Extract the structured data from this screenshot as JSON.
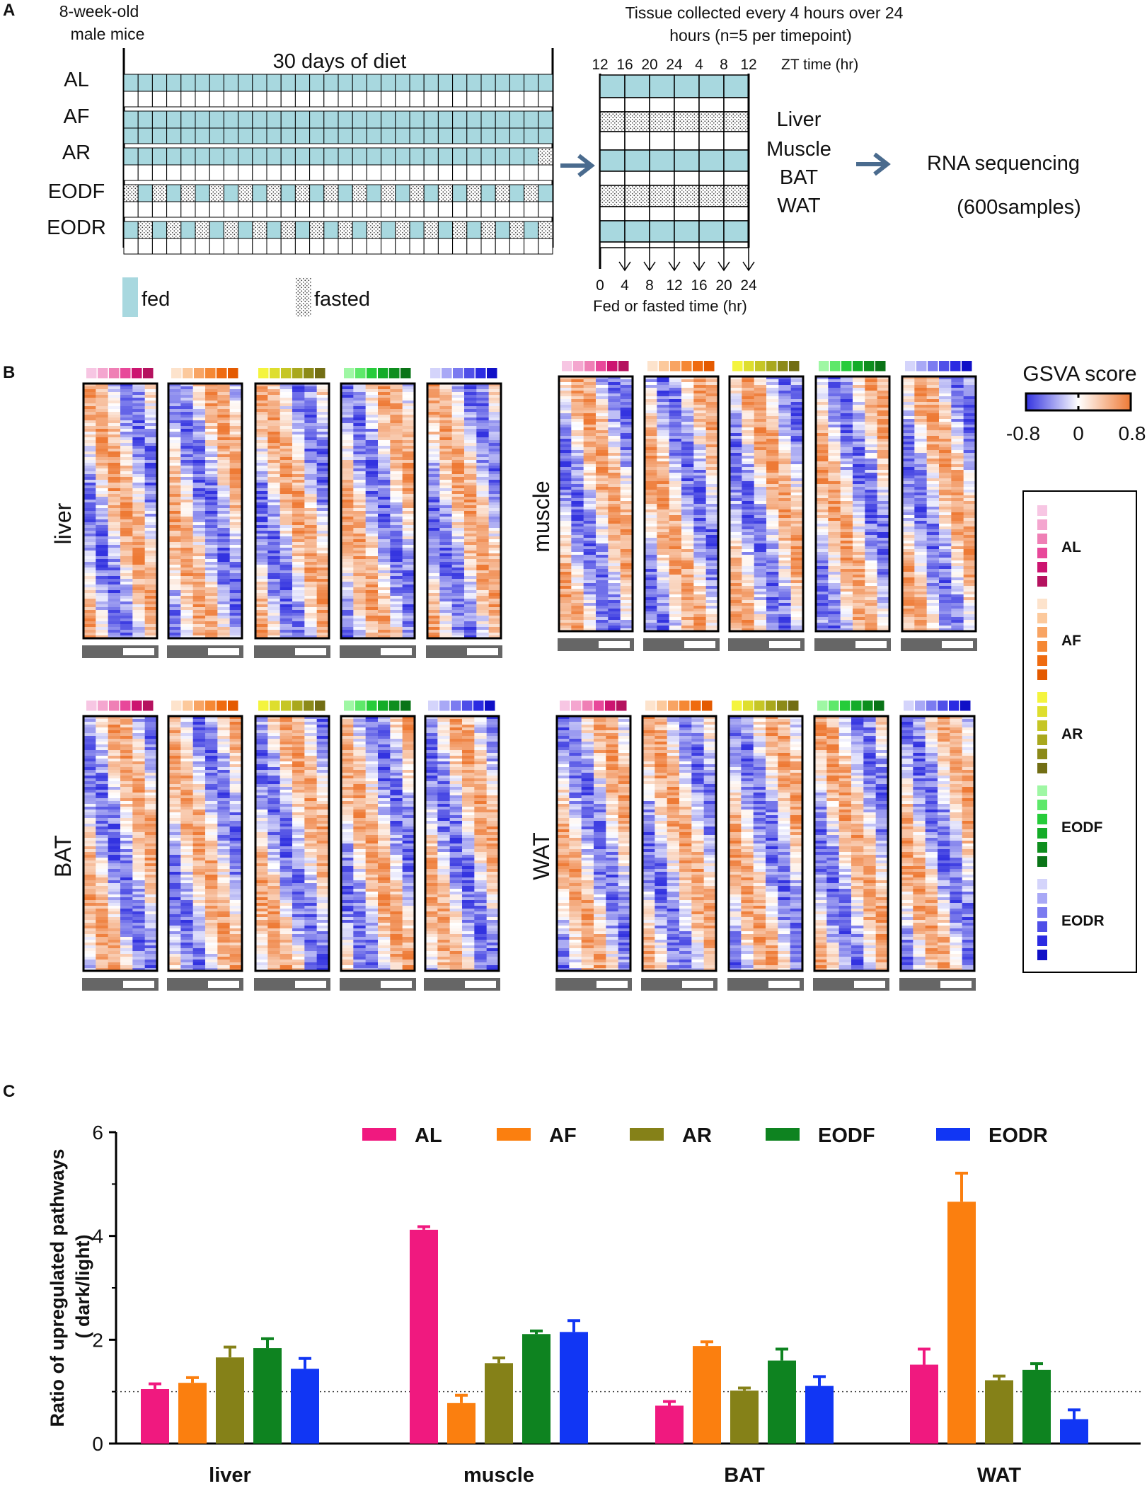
{
  "panels": {
    "a": "A",
    "b": "B",
    "c": "C"
  },
  "colors": {
    "fed": "#a8d8df",
    "fasted_bg": "#ffffff",
    "arrow": "#4a6b8e",
    "heat_low": "#3333e0",
    "heat_mid": "#ffffff",
    "heat_high": "#ee7a35"
  },
  "design": {
    "mice_label": [
      "8-week-old",
      "male mice"
    ],
    "diet_label": "30 days of diet",
    "diets": [
      "AL",
      "AF",
      "AR",
      "EODF",
      "EODR"
    ],
    "legend_fed": "fed",
    "legend_fasted": "fasted",
    "collection_label": [
      "Tissue collected every 4 hours over 24",
      "hours (n=5 per timepoint)"
    ],
    "zt_ticks": [
      "12",
      "16",
      "20",
      "24",
      "4",
      "8",
      "12"
    ],
    "zt_label": "ZT time (hr)",
    "tissues": [
      "Liver",
      "Muscle",
      "BAT",
      "WAT"
    ],
    "rna_label": "RNA sequencing",
    "samples_label": "(600samples)",
    "fed_ticks": [
      "0",
      "4",
      "8",
      "12",
      "16",
      "20",
      "24"
    ],
    "fed_label": "Fed or fasted time (hr)"
  },
  "heatmap": {
    "tissues": [
      "liver",
      "muscle",
      "BAT",
      "WAT"
    ],
    "gsva_title": "GSVA score",
    "gsva_ticks": [
      "-0.8",
      "0",
      "0.8"
    ],
    "groups": [
      {
        "name": "AL",
        "colors": [
          "#f7c6e3",
          "#f4a6cf",
          "#ef7fb5",
          "#e8489a",
          "#cc1470",
          "#b5125f"
        ]
      },
      {
        "name": "AF",
        "colors": [
          "#fde3cc",
          "#fcc99c",
          "#f8a463",
          "#f58834",
          "#ef6b10",
          "#e45a00"
        ]
      },
      {
        "name": "AR",
        "colors": [
          "#f4f43e",
          "#dede2e",
          "#c6c625",
          "#a9a81d",
          "#8c8a18",
          "#726e14"
        ]
      },
      {
        "name": "EODF",
        "colors": [
          "#9ff7a4",
          "#5ee86a",
          "#26cc3a",
          "#14ac28",
          "#0e8e1e",
          "#0a7417"
        ]
      },
      {
        "name": "EODR",
        "colors": [
          "#d4d4fb",
          "#a8a8f6",
          "#7b7bf0",
          "#4f4fe8",
          "#2b2be2",
          "#1010c7"
        ]
      }
    ]
  },
  "chart_data": {
    "type": "bar",
    "categories": [
      "liver",
      "muscle",
      "BAT",
      "WAT"
    ],
    "ylabel": [
      "Ratio of upregulated pathways",
      "( dark/light)"
    ],
    "ylim": [
      0,
      6
    ],
    "yticks": [
      0,
      2,
      4,
      6
    ],
    "reference_line": 1,
    "legend_position": "top",
    "series": [
      {
        "name": "AL",
        "color": "#f0197f",
        "values": [
          1.05,
          4.12,
          0.73,
          1.52
        ],
        "errors": [
          0.1,
          0.06,
          0.08,
          0.3
        ]
      },
      {
        "name": "AF",
        "color": "#fb7f0f",
        "values": [
          1.17,
          0.78,
          1.88,
          4.66
        ],
        "errors": [
          0.1,
          0.15,
          0.08,
          0.55
        ]
      },
      {
        "name": "AR",
        "color": "#858118",
        "values": [
          1.66,
          1.55,
          1.02,
          1.22
        ],
        "errors": [
          0.2,
          0.1,
          0.05,
          0.08
        ]
      },
      {
        "name": "EODF",
        "color": "#0e8320",
        "values": [
          1.84,
          2.11,
          1.6,
          1.42
        ],
        "errors": [
          0.18,
          0.06,
          0.22,
          0.12
        ]
      },
      {
        "name": "EODR",
        "color": "#1136f4",
        "values": [
          1.44,
          2.15,
          1.11,
          0.47
        ],
        "errors": [
          0.2,
          0.22,
          0.18,
          0.18
        ]
      }
    ]
  }
}
